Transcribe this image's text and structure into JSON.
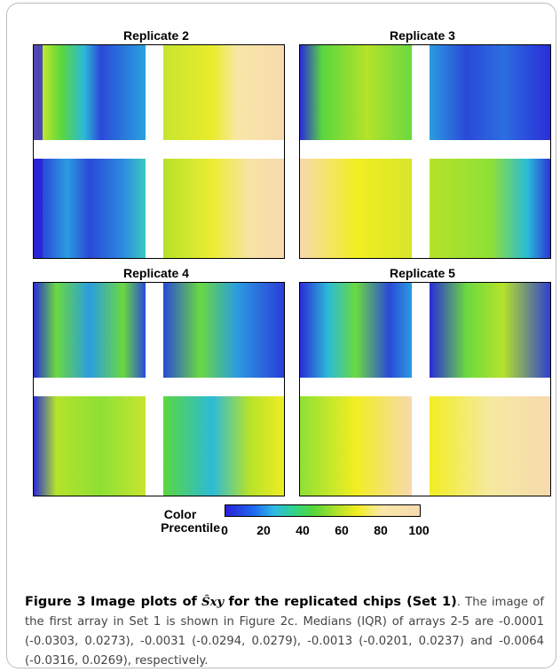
{
  "panels": [
    {
      "title": "Replicate 2"
    },
    {
      "title": "Replicate 3"
    },
    {
      "title": "Replicate 4"
    },
    {
      "title": "Replicate 5"
    }
  ],
  "colorbar": {
    "label_line1": "Color",
    "label_line2": "Precentile",
    "ticks": [
      "0",
      "20",
      "40",
      "60",
      "80",
      "100"
    ],
    "colors": [
      "#2a1fd8",
      "#1e6cf0",
      "#2fb9e6",
      "#2fd38a",
      "#54d63a",
      "#b5e22a",
      "#f2ee22",
      "#f9e8a8",
      "#f7d9ae"
    ]
  },
  "caption": {
    "label": "Figure 3",
    "title_prefix": "Image plots of",
    "math_symbol": "Ŝxy",
    "title_suffix": "for the replicated chips (Set 1)",
    "body": ". The image of the first array in Set 1 is shown in Figure 2c. Medians (IQR) of arrays 2-5 are -0.0001 (-0.0303, 0.0273), -0.0031 (-0.0294, 0.0279), -0.0013 (-0.0201, 0.0237) and -0.0064 (-0.0316, 0.0269), respectively."
  }
}
